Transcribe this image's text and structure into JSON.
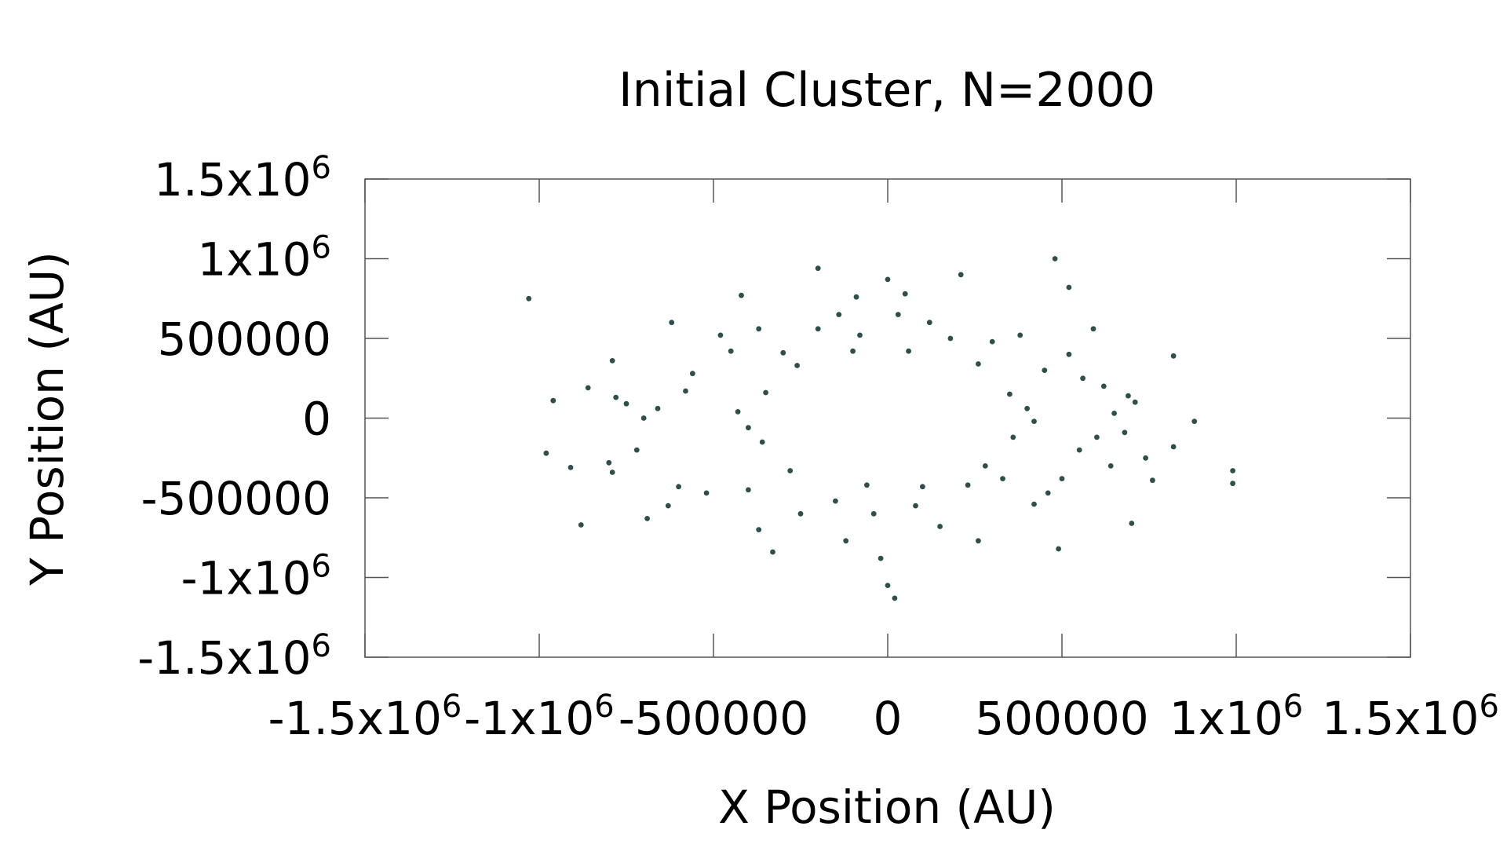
{
  "chart_data": {
    "type": "scatter",
    "title": "Initial Cluster, N=2000",
    "xlabel": "X Position (AU)",
    "ylabel": "Y Position (AU)",
    "xlim": [
      -1500000,
      1500000
    ],
    "ylim": [
      -1500000,
      1500000
    ],
    "grid": false,
    "legend": "none",
    "colors": {
      "points": "#2f4f4a",
      "frame": "#555555",
      "text": "#000000"
    },
    "x_ticks": [
      {
        "value": -1500000,
        "mant": "-1.5x10",
        "exp": "6"
      },
      {
        "value": -1000000,
        "mant": "-1x10",
        "exp": "6"
      },
      {
        "value": -500000,
        "mant": "-500000",
        "exp": ""
      },
      {
        "value": 0,
        "mant": "0",
        "exp": ""
      },
      {
        "value": 500000,
        "mant": "500000",
        "exp": ""
      },
      {
        "value": 1000000,
        "mant": "1x10",
        "exp": "6"
      },
      {
        "value": 1500000,
        "mant": "1.5x10",
        "exp": "6"
      }
    ],
    "y_ticks": [
      {
        "value": 1500000,
        "mant": "1.5x10",
        "exp": "6"
      },
      {
        "value": 1000000,
        "mant": "1x10",
        "exp": "6"
      },
      {
        "value": 500000,
        "mant": "500000",
        "exp": ""
      },
      {
        "value": 0,
        "mant": "0",
        "exp": ""
      },
      {
        "value": -500000,
        "mant": "-500000",
        "exp": ""
      },
      {
        "value": -1000000,
        "mant": "-1x10",
        "exp": "6"
      },
      {
        "value": -1500000,
        "mant": "-1.5x10",
        "exp": "6"
      }
    ],
    "series": [
      {
        "points": [
          [
            -1030000,
            750000
          ],
          [
            -960000,
            110000
          ],
          [
            -980000,
            -220000
          ],
          [
            -880000,
            -670000
          ],
          [
            -910000,
            -310000
          ],
          [
            -860000,
            190000
          ],
          [
            -790000,
            360000
          ],
          [
            -790000,
            -340000
          ],
          [
            -800000,
            -280000
          ],
          [
            -780000,
            130000
          ],
          [
            -690000,
            -630000
          ],
          [
            -700000,
            0
          ],
          [
            -620000,
            600000
          ],
          [
            -630000,
            -550000
          ],
          [
            -600000,
            -430000
          ],
          [
            -560000,
            280000
          ],
          [
            -480000,
            520000
          ],
          [
            -420000,
            770000
          ],
          [
            -370000,
            560000
          ],
          [
            -330000,
            -840000
          ],
          [
            -200000,
            940000
          ],
          [
            -140000,
            650000
          ],
          [
            -90000,
            760000
          ],
          [
            0,
            870000
          ],
          [
            30000,
            650000
          ],
          [
            50000,
            780000
          ],
          [
            210000,
            900000
          ],
          [
            480000,
            1000000
          ],
          [
            520000,
            820000
          ],
          [
            590000,
            560000
          ],
          [
            710000,
            100000
          ],
          [
            740000,
            -250000
          ],
          [
            760000,
            -390000
          ],
          [
            820000,
            390000
          ],
          [
            820000,
            -180000
          ],
          [
            880000,
            -20000
          ],
          [
            990000,
            -330000
          ],
          [
            990000,
            -410000
          ],
          [
            490000,
            -820000
          ],
          [
            700000,
            -660000
          ],
          [
            260000,
            -770000
          ],
          [
            0,
            -1050000
          ],
          [
            20000,
            -1130000
          ],
          [
            -20000,
            -880000
          ],
          [
            -120000,
            -770000
          ],
          [
            -370000,
            -700000
          ],
          [
            -450000,
            420000
          ],
          [
            -520000,
            -470000
          ],
          [
            -580000,
            170000
          ],
          [
            -660000,
            60000
          ],
          [
            -720000,
            -200000
          ],
          [
            -750000,
            90000
          ],
          [
            -400000,
            -450000
          ],
          [
            -300000,
            410000
          ],
          [
            -250000,
            -600000
          ],
          [
            -200000,
            560000
          ],
          [
            -150000,
            -520000
          ],
          [
            -80000,
            520000
          ],
          [
            -40000,
            -600000
          ],
          [
            80000,
            -550000
          ],
          [
            120000,
            600000
          ],
          [
            150000,
            -680000
          ],
          [
            180000,
            500000
          ],
          [
            230000,
            -420000
          ],
          [
            300000,
            480000
          ],
          [
            330000,
            -380000
          ],
          [
            380000,
            520000
          ],
          [
            420000,
            -540000
          ],
          [
            450000,
            300000
          ],
          [
            460000,
            -470000
          ],
          [
            500000,
            -380000
          ],
          [
            520000,
            400000
          ],
          [
            550000,
            -200000
          ],
          [
            560000,
            250000
          ],
          [
            600000,
            -120000
          ],
          [
            620000,
            200000
          ],
          [
            640000,
            -300000
          ],
          [
            650000,
            30000
          ],
          [
            680000,
            -90000
          ],
          [
            690000,
            140000
          ],
          [
            -100000,
            420000
          ],
          [
            -60000,
            -420000
          ],
          [
            60000,
            420000
          ],
          [
            100000,
            -430000
          ],
          [
            260000,
            340000
          ],
          [
            280000,
            -300000
          ],
          [
            -260000,
            330000
          ],
          [
            -280000,
            -330000
          ],
          [
            350000,
            150000
          ],
          [
            360000,
            -120000
          ],
          [
            -350000,
            160000
          ],
          [
            -360000,
            -150000
          ],
          [
            400000,
            60000
          ],
          [
            -400000,
            -60000
          ],
          [
            420000,
            -20000
          ],
          [
            -430000,
            40000
          ]
        ]
      }
    ]
  }
}
